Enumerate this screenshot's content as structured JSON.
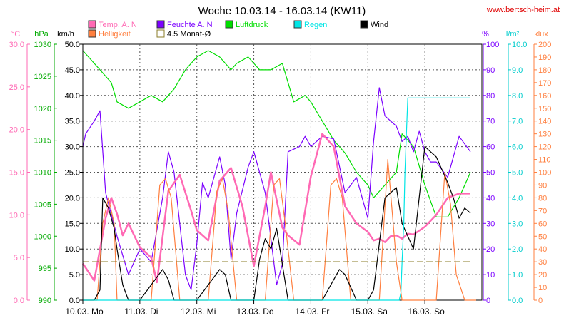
{
  "chart_data": {
    "type": "line",
    "title": "Woche 10.03.14 - 16.03.14 (KW11)",
    "watermark": "www.bertsch-heim.at",
    "x_labels": [
      "10.03. Mo",
      "11.03. Di",
      "12.03. Mi",
      "13.03. Do",
      "14.03. Fr",
      "15.03. Sa",
      "16.03. So"
    ],
    "legend": [
      {
        "label": "Temp. A. N",
        "color": "#ff69b4",
        "style": "fill"
      },
      {
        "label": "Feuchte A. N",
        "color": "#7b00ff",
        "style": "fill"
      },
      {
        "label": "Luftdruck",
        "color": "#00dd00",
        "style": "fill"
      },
      {
        "label": "Regen",
        "color": "#00e5e5",
        "style": "fill"
      },
      {
        "label": "Wind",
        "color": "#000000",
        "style": "fill"
      },
      {
        "label": "Helligkeit",
        "color": "#ff7f3f",
        "style": "fill"
      },
      {
        "label": "4.5 Monat-Ø",
        "color": "#8b7d2a",
        "style": "outline"
      }
    ],
    "axes": {
      "temp": {
        "unit": "°C",
        "color": "#ff69b4",
        "ticks": [
          "30.0",
          "25.0",
          "20.0",
          "15.0",
          "10.0",
          "5.0",
          "0.0"
        ]
      },
      "pressure": {
        "unit": "hPa",
        "color": "#00aa00",
        "ticks": [
          "1030",
          "1025",
          "1020",
          "1015",
          "1010",
          "1005",
          "1000",
          "995",
          "990"
        ]
      },
      "wind": {
        "unit": "km/h",
        "color": "#000000",
        "ticks": [
          "50.0",
          "45.0",
          "40.0",
          "35.0",
          "30.0",
          "25.0",
          "20.0",
          "15.0",
          "10.0",
          "5.0",
          "0.0"
        ]
      },
      "humidity": {
        "unit": "%",
        "color": "#7b00ff",
        "ticks": [
          "100",
          "90",
          "80",
          "70",
          "60",
          "50",
          "40",
          "30",
          "20",
          "10",
          "0"
        ]
      },
      "rain": {
        "unit": "l/m²",
        "color": "#00cccc",
        "ticks": [
          "10.0",
          "9.0",
          "8.0",
          "7.0",
          "6.0",
          "5.0",
          "4.0",
          "3.0",
          "2.0",
          "1.0",
          "0.0"
        ]
      },
      "light": {
        "unit": "klux",
        "color": "#ff7f3f",
        "ticks": [
          "200",
          "190",
          "180",
          "170",
          "160",
          "150",
          "140",
          "130",
          "120",
          "110",
          "100",
          "90",
          "80",
          "70",
          "60",
          "50",
          "40",
          "30",
          "20",
          "10",
          "0"
        ]
      }
    },
    "xlim_days": [
      0,
      7
    ],
    "wind_ylim": [
      0,
      50
    ],
    "series": [
      {
        "name": "Luftdruck",
        "color": "#00dd00",
        "axis": "pressure",
        "ylim": [
          990,
          1030
        ],
        "x": [
          0,
          0.1,
          0.3,
          0.5,
          0.6,
          0.8,
          1.0,
          1.2,
          1.4,
          1.6,
          1.8,
          2.0,
          2.2,
          2.4,
          2.6,
          2.7,
          2.9,
          3.1,
          3.3,
          3.5,
          3.7,
          3.9,
          4.0,
          4.2,
          4.4,
          4.6,
          4.8,
          5.0,
          5.1,
          5.3,
          5.5,
          5.6,
          5.8,
          6.0,
          6.2,
          6.4,
          6.6,
          6.8
        ],
        "y": [
          1029,
          1028,
          1026,
          1024,
          1021,
          1020,
          1021,
          1022,
          1021,
          1023,
          1026,
          1028,
          1029,
          1028,
          1026,
          1027,
          1028,
          1026,
          1026,
          1027,
          1021,
          1022,
          1021,
          1018,
          1015,
          1013,
          1010,
          1008,
          1006,
          1008,
          1010,
          1016,
          1014,
          1008,
          1003,
          1003,
          1006,
          1010
        ]
      },
      {
        "name": "Feuchte A. N",
        "color": "#7b00ff",
        "axis": "humidity",
        "ylim": [
          0,
          100
        ],
        "x": [
          0,
          0.05,
          0.2,
          0.3,
          0.4,
          0.6,
          0.8,
          1.0,
          1.2,
          1.4,
          1.5,
          1.6,
          1.8,
          1.9,
          2.0,
          2.1,
          2.2,
          2.4,
          2.5,
          2.6,
          2.7,
          2.9,
          3.0,
          3.2,
          3.4,
          3.5,
          3.6,
          3.8,
          3.9,
          4.0,
          4.2,
          4.4,
          4.6,
          4.8,
          5.0,
          5.1,
          5.2,
          5.3,
          5.4,
          5.5,
          5.6,
          5.7,
          5.8,
          5.9,
          6.0,
          6.1,
          6.2,
          6.4,
          6.6,
          6.8
        ],
        "y": [
          60,
          65,
          70,
          74,
          42,
          25,
          10,
          20,
          15,
          40,
          58,
          50,
          10,
          4,
          22,
          46,
          40,
          56,
          45,
          16,
          34,
          52,
          58,
          42,
          6,
          14,
          58,
          60,
          64,
          60,
          64,
          63,
          42,
          48,
          32,
          62,
          83,
          72,
          70,
          68,
          62,
          64,
          58,
          66,
          58,
          54,
          54,
          48,
          64,
          58
        ]
      },
      {
        "name": "Temp. A. N",
        "color": "#ff69b4",
        "axis": "temp",
        "ylim": [
          0,
          30
        ],
        "x": [
          0,
          0.2,
          0.4,
          0.5,
          0.6,
          0.7,
          0.8,
          1.0,
          1.2,
          1.3,
          1.5,
          1.7,
          1.9,
          2.0,
          2.2,
          2.4,
          2.6,
          2.8,
          3.0,
          3.2,
          3.3,
          3.5,
          3.6,
          3.8,
          4.0,
          4.2,
          4.4,
          4.6,
          4.8,
          5.0,
          5.1,
          5.2,
          5.3,
          5.4,
          5.5,
          5.6,
          5.7,
          5.8,
          6.0,
          6.2,
          6.4,
          6.6,
          6.8
        ],
        "y": [
          4.3,
          2.3,
          9.6,
          12.0,
          10.1,
          7.6,
          9.0,
          6.2,
          5.0,
          2.1,
          12.8,
          14.7,
          10.5,
          8.2,
          7.0,
          14.0,
          15.5,
          11.0,
          4.0,
          11.0,
          15.0,
          8.5,
          7.6,
          6.5,
          14.5,
          19.5,
          18.0,
          11.0,
          9.0,
          8.0,
          7.0,
          7.2,
          6.8,
          7.5,
          7.6,
          7.2,
          7.8,
          7.7,
          8.6,
          10.0,
          12.0,
          12.5,
          12.5
        ]
      },
      {
        "name": "Helligkeit",
        "color": "#ff7f3f",
        "axis": "light",
        "ylim": [
          0,
          200
        ],
        "x": [
          0,
          0.25,
          0.35,
          0.45,
          0.55,
          0.6,
          0.8,
          1.0,
          1.2,
          1.35,
          1.45,
          1.55,
          1.7,
          1.9,
          2.0,
          2.2,
          2.35,
          2.45,
          2.55,
          2.7,
          2.9,
          3.0,
          3.2,
          3.35,
          3.45,
          3.55,
          3.7,
          3.9,
          4.0,
          4.2,
          4.35,
          4.45,
          4.55,
          4.7,
          4.9,
          5.0,
          5.2,
          5.35,
          5.5,
          5.6,
          5.8,
          6.0,
          6.2,
          6.35,
          6.45,
          6.55,
          6.7,
          6.9
        ],
        "y": [
          0,
          0,
          60,
          80,
          60,
          0,
          0,
          0,
          0,
          90,
          95,
          80,
          0,
          0,
          0,
          0,
          85,
          95,
          70,
          0,
          0,
          0,
          0,
          90,
          95,
          60,
          0,
          0,
          0,
          0,
          90,
          95,
          80,
          0,
          0,
          0,
          0,
          110,
          30,
          0,
          0,
          0,
          0,
          100,
          75,
          20,
          0,
          0
        ]
      },
      {
        "name": "Wind",
        "color": "#000000",
        "axis": "wind",
        "ylim": [
          0,
          50
        ],
        "x": [
          0,
          0.2,
          0.3,
          0.35,
          0.45,
          0.55,
          0.6,
          0.7,
          0.8,
          1.0,
          1.2,
          1.4,
          1.5,
          1.6,
          1.8,
          2.0,
          2.2,
          2.4,
          2.5,
          2.6,
          2.8,
          3.0,
          3.1,
          3.2,
          3.3,
          3.4,
          3.6,
          3.8,
          4.0,
          4.2,
          4.4,
          4.5,
          4.6,
          4.8,
          5.0,
          5.1,
          5.3,
          5.5,
          5.6,
          5.8,
          6.0,
          6.2,
          6.4,
          6.5,
          6.6,
          6.7,
          6.8
        ],
        "y": [
          0,
          0,
          2,
          20,
          18,
          14,
          10,
          3,
          0,
          0,
          3,
          6,
          4,
          0,
          0,
          0,
          3,
          6,
          5,
          0,
          0,
          0,
          8,
          12,
          10,
          14,
          0,
          0,
          0,
          0,
          4,
          6,
          5,
          0,
          0,
          2,
          20,
          22,
          15,
          10,
          30,
          28,
          23,
          20,
          16,
          18,
          17
        ]
      },
      {
        "name": "Regen",
        "color": "#00e5e5",
        "axis": "rain",
        "ylim": [
          0,
          10
        ],
        "x": [
          0,
          5.55,
          5.58,
          5.6,
          5.63,
          5.65,
          5.7,
          5.75,
          6.8
        ],
        "y": [
          0,
          0,
          0.3,
          1.5,
          3.0,
          5.0,
          7.9,
          7.9,
          7.9
        ]
      },
      {
        "name": "4.5 Monat-Ø",
        "color": "#8b7d2a",
        "axis": "temp",
        "ylim": [
          0,
          30
        ],
        "dashed": true,
        "x": [
          0,
          6.8
        ],
        "y": [
          4.5,
          4.5
        ]
      }
    ]
  }
}
